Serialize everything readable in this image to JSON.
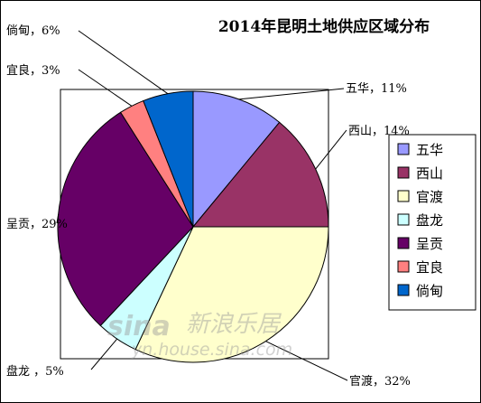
{
  "chart_data": {
    "type": "pie",
    "title": "2014年昆明土地供应区域分布",
    "categories": [
      "五华",
      "西山",
      "官渡",
      "盘龙",
      "呈贡",
      "宜良",
      "倘甸"
    ],
    "values": [
      11,
      14,
      32,
      5,
      29,
      3,
      6
    ],
    "unit": "%",
    "data_labels": [
      "五华，11%",
      "西山，14%",
      "官渡，32%",
      "盘龙 ，5%",
      "呈贡，29%",
      "宜良，3%",
      "倘甸，6%"
    ],
    "colors": [
      "#9999FF",
      "#993366",
      "#FFFFCC",
      "#CCFFFF",
      "#660066",
      "#FF8080",
      "#0066CC"
    ],
    "legend_position": "right"
  },
  "watermark": {
    "brand": "sina",
    "text": "新浪乐居",
    "url": "yn.house.sina.com"
  }
}
